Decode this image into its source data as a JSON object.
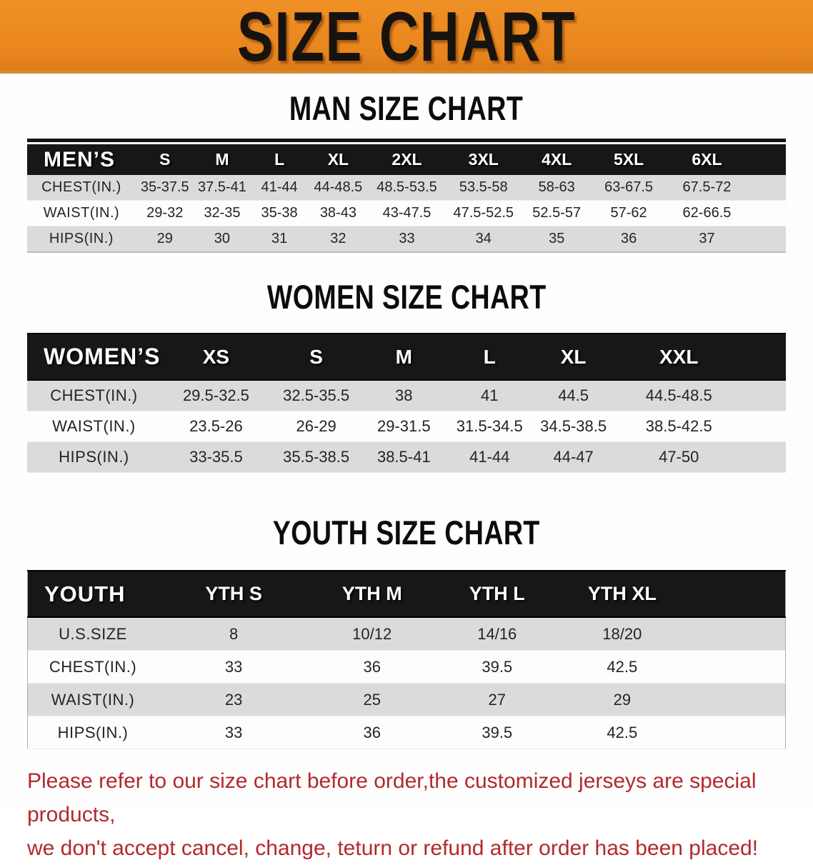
{
  "banner": {
    "title": "SIZE CHART",
    "background_color": "#E8861D",
    "text_color": "#17130E"
  },
  "sections": [
    {
      "heading": "MAN SIZE CHART",
      "table": {
        "header_label": "MEN’S",
        "columns": [
          "S",
          "M",
          "L",
          "XL",
          "2XL",
          "3XL",
          "4XL",
          "5XL",
          "6XL"
        ],
        "rows": [
          {
            "label": "CHEST(IN.)",
            "values": [
              "35-37.5",
              "37.5-41",
              "41-44",
              "44-48.5",
              "48.5-53.5",
              "53.5-58",
              "58-63",
              "63-67.5",
              "67.5-72"
            ]
          },
          {
            "label": "WAIST(IN.)",
            "values": [
              "29-32",
              "32-35",
              "35-38",
              "38-43",
              "43-47.5",
              "47.5-52.5",
              "52.5-57",
              "57-62",
              "62-66.5"
            ]
          },
          {
            "label": "HIPS(IN.)",
            "values": [
              "29",
              "30",
              "31",
              "32",
              "33",
              "34",
              "35",
              "36",
              "37"
            ]
          }
        ]
      }
    },
    {
      "heading": "WOMEN SIZE CHART",
      "table": {
        "header_label": "WOMEN’S",
        "columns": [
          "XS",
          "S",
          "M",
          "L",
          "XL",
          "XXL"
        ],
        "rows": [
          {
            "label": "CHEST(IN.)",
            "values": [
              "29.5-32.5",
              "32.5-35.5",
              "38",
              "41",
              "44.5",
              "44.5-48.5"
            ]
          },
          {
            "label": "WAIST(IN.)",
            "values": [
              "23.5-26",
              "26-29",
              "29-31.5",
              "31.5-34.5",
              "34.5-38.5",
              "38.5-42.5"
            ]
          },
          {
            "label": "HIPS(IN.)",
            "values": [
              "33-35.5",
              "35.5-38.5",
              "38.5-41",
              "41-44",
              "44-47",
              "47-50"
            ]
          }
        ]
      }
    },
    {
      "heading": "YOUTH SIZE CHART",
      "table": {
        "header_label": "YOUTH",
        "columns": [
          "YTH S",
          "YTH M",
          "YTH L",
          "YTH XL"
        ],
        "rows": [
          {
            "label": "U.S.SIZE",
            "values": [
              "8",
              "10/12",
              "14/16",
              "18/20"
            ]
          },
          {
            "label": "CHEST(IN.)",
            "values": [
              "33",
              "36",
              "39.5",
              "42.5"
            ]
          },
          {
            "label": "WAIST(IN.)",
            "values": [
              "23",
              "25",
              "27",
              "29"
            ]
          },
          {
            "label": "HIPS(IN.)",
            "values": [
              "33",
              "36",
              "39.5",
              "42.5"
            ]
          }
        ]
      }
    }
  ],
  "footer": {
    "line1": "Please refer to our size chart before order,the customized jerseys are special products,",
    "line2": "we don't accept cancel, change, teturn or refund after order has been placed!",
    "text_color": "#B2292C"
  },
  "colors": {
    "header_bar": "#171717",
    "stripe_gray": "#DBDBDB",
    "stripe_white": "#FDFDFD"
  }
}
